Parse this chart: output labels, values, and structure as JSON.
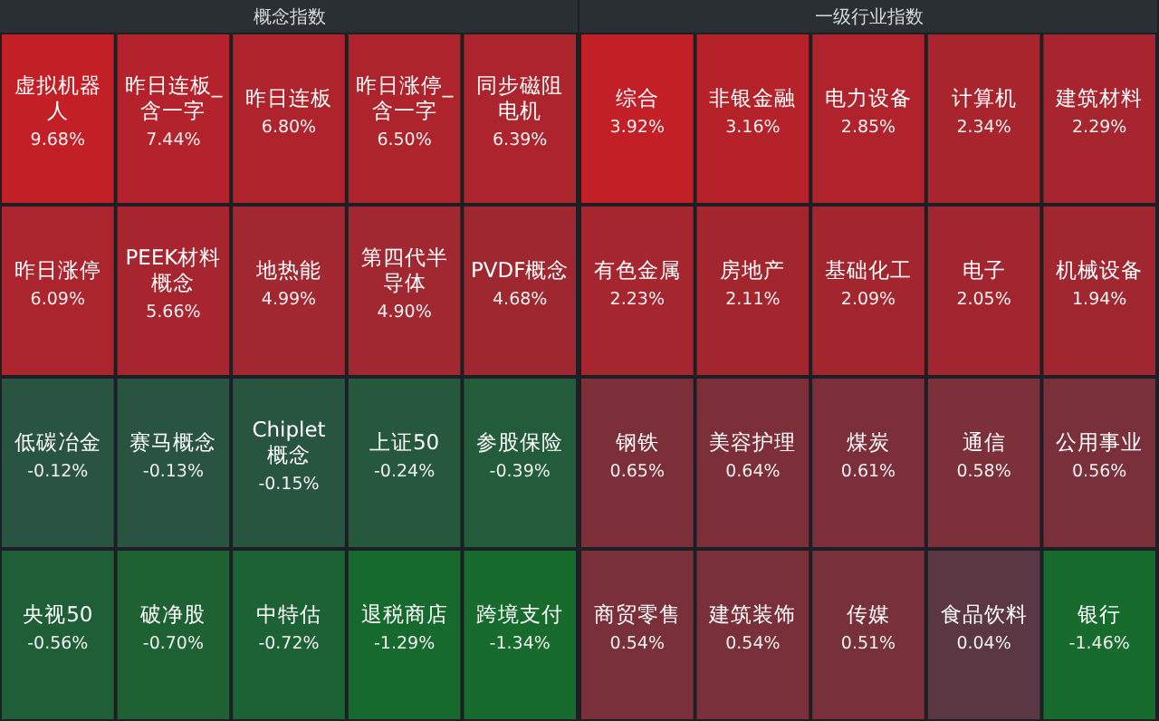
{
  "chart_data": [
    {
      "type": "other",
      "title": "概念指数",
      "categories": [
        "虚拟机器人",
        "昨日连板_含一字",
        "昨日连板",
        "昨日涨停_含一字",
        "同步磁阻电机",
        "昨日涨停",
        "PEEK材料概念",
        "地热能",
        "第四代半导体",
        "PVDF概念",
        "低碳冶金",
        "赛马概念",
        "Chiplet概念",
        "上证50",
        "参股保险",
        "央视50",
        "破净股",
        "中特估",
        "退税商店",
        "跨境支付"
      ],
      "values": [
        9.68,
        7.44,
        6.8,
        6.5,
        6.39,
        6.09,
        5.66,
        4.99,
        4.9,
        4.68,
        -0.12,
        -0.13,
        -0.15,
        -0.24,
        -0.39,
        -0.56,
        -0.7,
        -0.72,
        -1.29,
        -1.34
      ],
      "value_labels": [
        "9.68%",
        "7.44%",
        "6.80%",
        "6.50%",
        "6.39%",
        "6.09%",
        "5.66%",
        "4.99%",
        "4.90%",
        "4.68%",
        "-0.12%",
        "-0.13%",
        "-0.15%",
        "-0.24%",
        "-0.39%",
        "-0.56%",
        "-0.70%",
        "-0.72%",
        "-1.29%",
        "-1.34%"
      ]
    },
    {
      "type": "other",
      "title": "一级行业指数",
      "categories": [
        "综合",
        "非银金融",
        "电力设备",
        "计算机",
        "建筑材料",
        "有色金属",
        "房地产",
        "基础化工",
        "电子",
        "机械设备",
        "钢铁",
        "美容护理",
        "煤炭",
        "通信",
        "公用事业",
        "商贸零售",
        "建筑装饰",
        "传媒",
        "食品饮料",
        "银行"
      ],
      "values": [
        3.92,
        3.16,
        2.85,
        2.34,
        2.29,
        2.23,
        2.11,
        2.09,
        2.05,
        1.94,
        0.65,
        0.64,
        0.61,
        0.58,
        0.56,
        0.54,
        0.54,
        0.51,
        0.04,
        -1.46
      ],
      "value_labels": [
        "3.92%",
        "3.16%",
        "2.85%",
        "2.34%",
        "2.29%",
        "2.23%",
        "2.11%",
        "2.09%",
        "2.05%",
        "1.94%",
        "0.65%",
        "0.64%",
        "0.61%",
        "0.58%",
        "0.56%",
        "0.54%",
        "0.54%",
        "0.51%",
        "0.04%",
        "-1.46%"
      ]
    }
  ]
}
